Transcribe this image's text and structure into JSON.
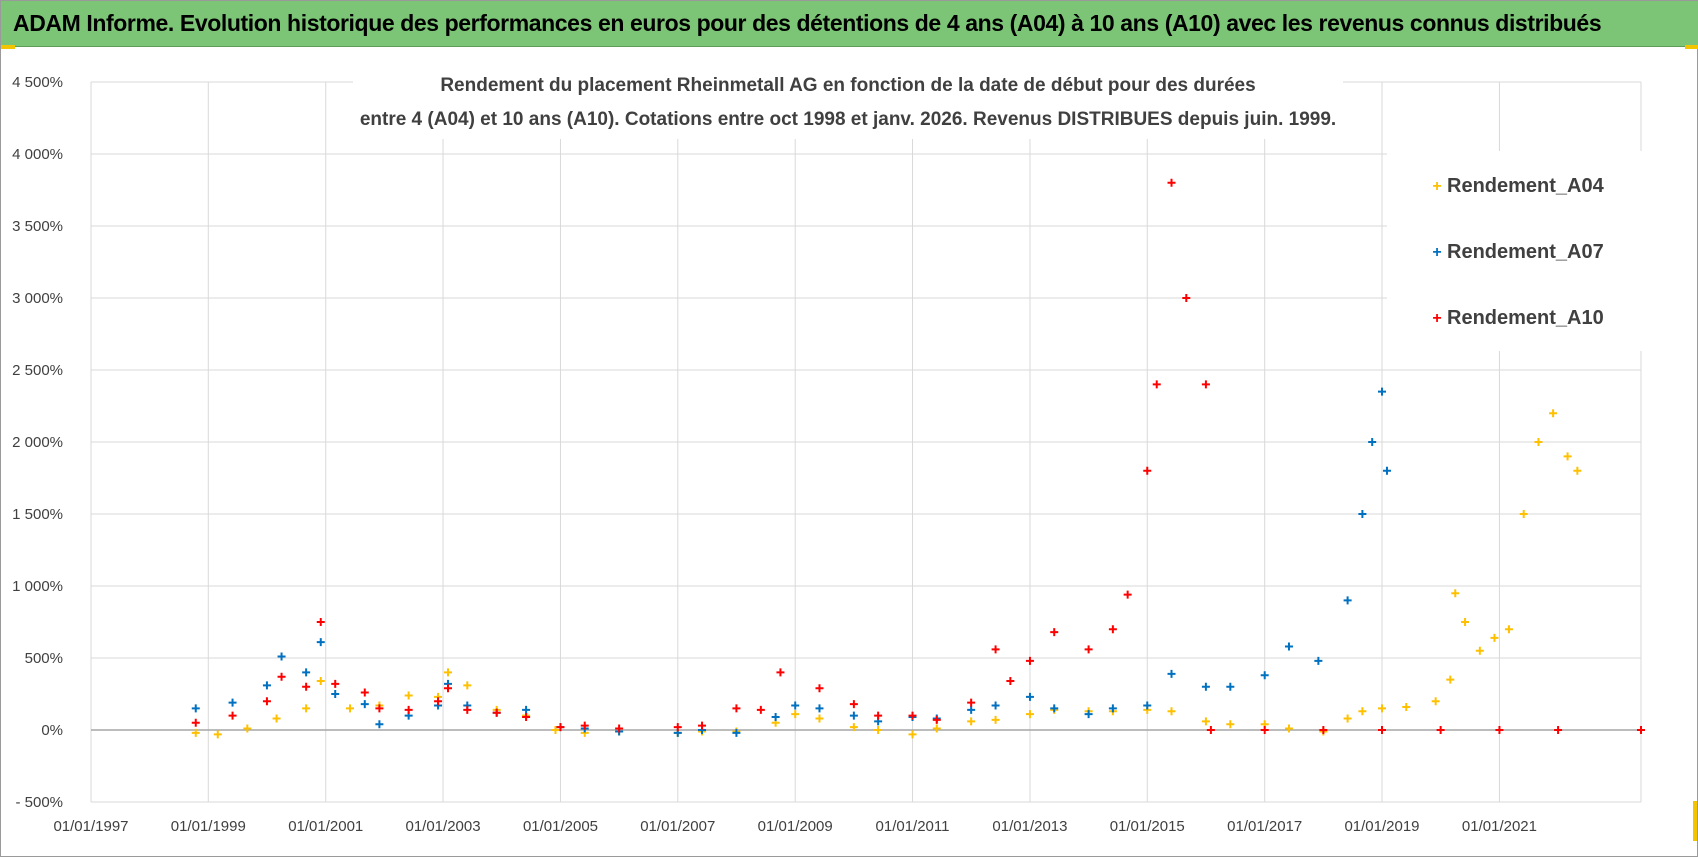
{
  "banner": {
    "title": "ADAM Informe. Evolution historique des performances en euros pour des détentions de 4 ans (A04) à 10 ans (A10) avec les revenus connus distribués"
  },
  "colors": {
    "banner_bg": "#7cc576",
    "gridline": "#d9d9d9",
    "zero_line": "#a6a6a6",
    "series_A04": "#ffc000",
    "series_A07": "#0070c0",
    "series_A10": "#ff0000"
  },
  "chart_data": {
    "type": "scatter",
    "title_lines": [
      "Rendement du placement Rheinmetall AG en fonction de la date de début pour des durées",
      "entre 4 (A04) et 10 ans (A10). Cotations entre oct 1998 et janv. 2026. Revenus DISTRIBUES depuis juin. 1999."
    ],
    "x_axis": {
      "type": "date",
      "min": "1997-01-01",
      "max": "2023-06-01",
      "tick_labels": [
        "01/01/1997",
        "01/01/1999",
        "01/01/2001",
        "01/01/2003",
        "01/01/2005",
        "01/01/2007",
        "01/01/2009",
        "01/01/2011",
        "01/01/2013",
        "01/01/2015",
        "01/01/2017",
        "01/01/2019",
        "01/01/2021"
      ]
    },
    "y_axis": {
      "min": -500,
      "max": 4500,
      "step": 500,
      "unit": "%",
      "tick_labels": [
        "- 500%",
        "0%",
        "500%",
        "1 000%",
        "1 500%",
        "2 000%",
        "2 500%",
        "3 000%",
        "3 500%",
        "4 000%",
        "4 500%"
      ]
    },
    "grid": true,
    "marker": "+",
    "legend": {
      "position": "top-right"
    },
    "series": [
      {
        "name": "Rendement_A04",
        "color": "#ffc000",
        "points": [
          [
            "1998-10-15",
            -20
          ],
          [
            "1999-03-01",
            -30
          ],
          [
            "1999-09-01",
            10
          ],
          [
            "2000-03-01",
            80
          ],
          [
            "2000-09-01",
            150
          ],
          [
            "2000-12-01",
            340
          ],
          [
            "2001-06-01",
            150
          ],
          [
            "2001-12-01",
            170
          ],
          [
            "2002-06-01",
            240
          ],
          [
            "2002-12-01",
            230
          ],
          [
            "2003-02-01",
            400
          ],
          [
            "2003-06-01",
            310
          ],
          [
            "2003-12-01",
            140
          ],
          [
            "2004-06-01",
            100
          ],
          [
            "2004-12-01",
            0
          ],
          [
            "2005-06-01",
            -20
          ],
          [
            "2006-01-01",
            -10
          ],
          [
            "2007-01-01",
            -20
          ],
          [
            "2007-06-01",
            -10
          ],
          [
            "2008-01-01",
            -10
          ],
          [
            "2008-09-01",
            50
          ],
          [
            "2009-01-01",
            110
          ],
          [
            "2009-06-01",
            80
          ],
          [
            "2010-01-01",
            20
          ],
          [
            "2010-06-01",
            0
          ],
          [
            "2011-01-01",
            -30
          ],
          [
            "2011-06-01",
            10
          ],
          [
            "2012-01-01",
            60
          ],
          [
            "2012-06-01",
            70
          ],
          [
            "2013-01-01",
            110
          ],
          [
            "2013-06-01",
            140
          ],
          [
            "2014-01-01",
            130
          ],
          [
            "2014-06-01",
            130
          ],
          [
            "2015-01-01",
            140
          ],
          [
            "2015-06-01",
            130
          ],
          [
            "2016-01-01",
            60
          ],
          [
            "2016-06-01",
            40
          ],
          [
            "2017-01-01",
            40
          ],
          [
            "2017-06-01",
            10
          ],
          [
            "2018-01-01",
            -10
          ],
          [
            "2018-06-01",
            80
          ],
          [
            "2018-09-01",
            130
          ],
          [
            "2019-01-01",
            150
          ],
          [
            "2019-06-01",
            160
          ],
          [
            "2019-12-01",
            200
          ],
          [
            "2020-03-01",
            350
          ],
          [
            "2020-04-01",
            950
          ],
          [
            "2020-06-01",
            750
          ],
          [
            "2020-09-01",
            550
          ],
          [
            "2020-12-01",
            640
          ],
          [
            "2021-03-01",
            700
          ],
          [
            "2021-06-01",
            1500
          ],
          [
            "2021-09-01",
            2000
          ],
          [
            "2021-12-01",
            2200
          ],
          [
            "2022-03-01",
            1900
          ],
          [
            "2022-05-01",
            1800
          ]
        ]
      },
      {
        "name": "Rendement_A07",
        "color": "#0070c0",
        "points": [
          [
            "1998-10-15",
            150
          ],
          [
            "1999-06-01",
            190
          ],
          [
            "2000-01-01",
            310
          ],
          [
            "2000-04-01",
            510
          ],
          [
            "2000-09-01",
            400
          ],
          [
            "2000-12-01",
            610
          ],
          [
            "2001-03-01",
            250
          ],
          [
            "2001-09-01",
            180
          ],
          [
            "2001-12-01",
            40
          ],
          [
            "2002-06-01",
            100
          ],
          [
            "2002-12-01",
            170
          ],
          [
            "2003-02-01",
            320
          ],
          [
            "2003-06-01",
            170
          ],
          [
            "2003-12-01",
            120
          ],
          [
            "2004-06-01",
            140
          ],
          [
            "2005-01-01",
            20
          ],
          [
            "2005-06-01",
            10
          ],
          [
            "2006-01-01",
            -10
          ],
          [
            "2007-01-01",
            -20
          ],
          [
            "2007-06-01",
            0
          ],
          [
            "2008-01-01",
            -20
          ],
          [
            "2008-09-01",
            90
          ],
          [
            "2009-01-01",
            170
          ],
          [
            "2009-06-01",
            150
          ],
          [
            "2010-01-01",
            100
          ],
          [
            "2010-06-01",
            60
          ],
          [
            "2011-01-01",
            90
          ],
          [
            "2011-06-01",
            80
          ],
          [
            "2012-01-01",
            140
          ],
          [
            "2012-06-01",
            170
          ],
          [
            "2013-01-01",
            230
          ],
          [
            "2013-06-01",
            150
          ],
          [
            "2014-01-01",
            110
          ],
          [
            "2014-06-01",
            150
          ],
          [
            "2015-01-01",
            170
          ],
          [
            "2015-06-01",
            390
          ],
          [
            "2016-01-01",
            300
          ],
          [
            "2016-06-01",
            300
          ],
          [
            "2017-01-01",
            380
          ],
          [
            "2017-06-01",
            580
          ],
          [
            "2017-12-01",
            480
          ],
          [
            "2018-06-01",
            900
          ],
          [
            "2018-09-01",
            1500
          ],
          [
            "2018-11-01",
            2000
          ],
          [
            "2019-01-01",
            2350
          ],
          [
            "2019-02-01",
            1800
          ]
        ]
      },
      {
        "name": "Rendement_A10",
        "color": "#ff0000",
        "points": [
          [
            "1998-10-15",
            50
          ],
          [
            "1999-06-01",
            100
          ],
          [
            "2000-01-01",
            200
          ],
          [
            "2000-04-01",
            370
          ],
          [
            "2000-09-01",
            300
          ],
          [
            "2000-12-01",
            750
          ],
          [
            "2001-03-01",
            320
          ],
          [
            "2001-09-01",
            260
          ],
          [
            "2001-12-01",
            150
          ],
          [
            "2002-06-01",
            140
          ],
          [
            "2002-12-01",
            200
          ],
          [
            "2003-02-01",
            290
          ],
          [
            "2003-06-01",
            140
          ],
          [
            "2003-12-01",
            120
          ],
          [
            "2004-06-01",
            90
          ],
          [
            "2005-01-01",
            20
          ],
          [
            "2005-06-01",
            30
          ],
          [
            "2006-01-01",
            10
          ],
          [
            "2007-01-01",
            20
          ],
          [
            "2007-06-01",
            30
          ],
          [
            "2008-01-01",
            150
          ],
          [
            "2008-06-01",
            140
          ],
          [
            "2008-10-01",
            400
          ],
          [
            "2009-06-01",
            290
          ],
          [
            "2010-01-01",
            180
          ],
          [
            "2010-06-01",
            100
          ],
          [
            "2011-01-01",
            100
          ],
          [
            "2011-06-01",
            70
          ],
          [
            "2012-01-01",
            190
          ],
          [
            "2012-06-01",
            560
          ],
          [
            "2012-09-01",
            340
          ],
          [
            "2013-01-01",
            480
          ],
          [
            "2013-06-01",
            680
          ],
          [
            "2014-01-01",
            560
          ],
          [
            "2014-06-01",
            700
          ],
          [
            "2014-09-01",
            940
          ],
          [
            "2015-01-01",
            1800
          ],
          [
            "2015-03-01",
            2400
          ],
          [
            "2015-06-01",
            3800
          ],
          [
            "2015-09-01",
            3000
          ],
          [
            "2016-01-01",
            2400
          ],
          [
            "2016-02-01",
            0
          ],
          [
            "2017-01-01",
            0
          ],
          [
            "2018-01-01",
            0
          ],
          [
            "2019-01-01",
            0
          ],
          [
            "2020-01-01",
            0
          ],
          [
            "2021-01-01",
            0
          ],
          [
            "2022-01-01",
            0
          ],
          [
            "2023-06-01",
            0
          ]
        ]
      }
    ]
  }
}
